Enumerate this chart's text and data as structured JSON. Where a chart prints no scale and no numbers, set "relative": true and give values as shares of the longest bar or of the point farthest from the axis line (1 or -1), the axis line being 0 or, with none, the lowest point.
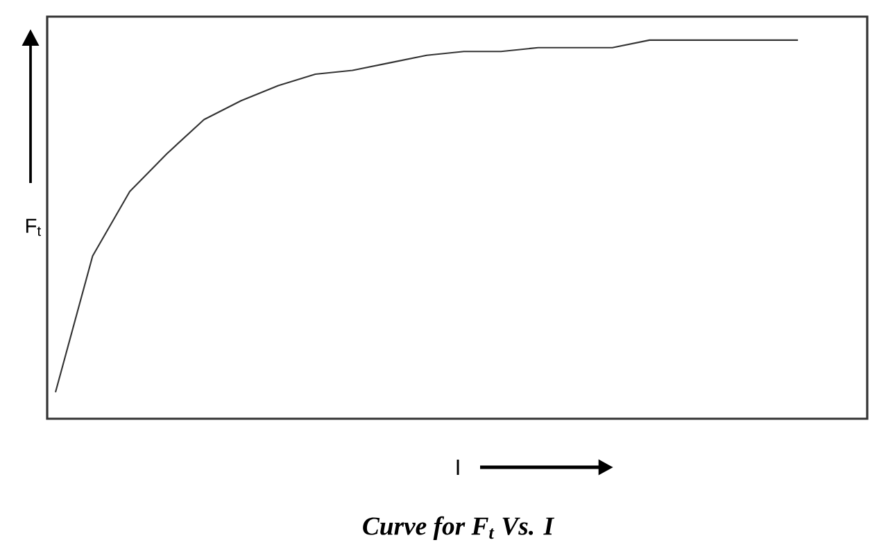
{
  "chart_data": {
    "type": "line",
    "relative": true,
    "ylabel": "F$_{t}$",
    "xlabel": "I",
    "title": "Curve for F$_{t}$ Vs. I",
    "categories": [
      null,
      null,
      null,
      null,
      null,
      null,
      null,
      null,
      null,
      null,
      null,
      null,
      null,
      null,
      null,
      null,
      null,
      null,
      null,
      null,
      null
    ],
    "series": [
      {
        "color": "#333333",
        "values": [
          0.07,
          0.43,
          0.6,
          0.7,
          0.79,
          0.84,
          0.88,
          0.91,
          0.92,
          0.94,
          0.96,
          0.97,
          0.97,
          0.98,
          0.98,
          0.98,
          1.0,
          1.0,
          1.0,
          1.0,
          1.0
        ]
      }
    ]
  }
}
